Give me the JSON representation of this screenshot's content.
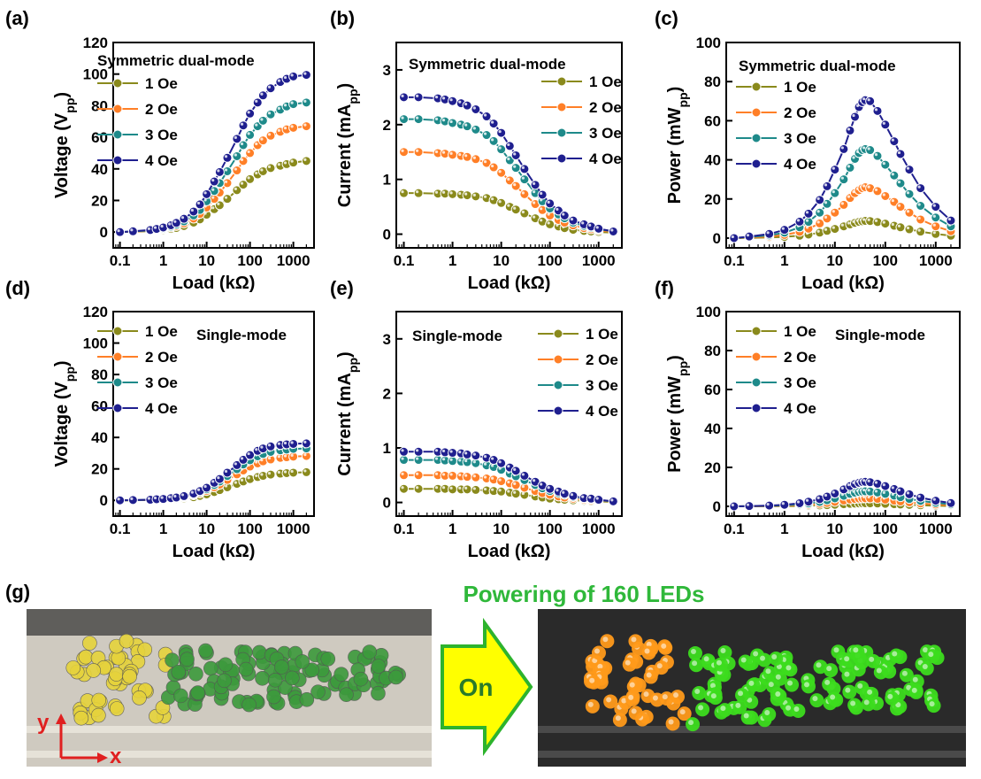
{
  "colors": {
    "1 Oe": "#8a8a1c",
    "2 Oe": "#ff7f27",
    "3 Oe": "#1e8a8a",
    "4 Oe": "#1f1f8f",
    "led_yellow_photo": "#e6d33c",
    "led_green_photo": "#3c9a3c",
    "led_orange_lit": "#ff9a1a",
    "led_green_lit": "#3cdc1e",
    "arrow_fill": "#ffff00",
    "arrow_stroke": "#2db32d"
  },
  "chart_data": [
    {
      "panel": "(a)",
      "type": "line",
      "title": "Symmetric dual-mode",
      "xlabel": "Load (kΩ)",
      "ylabel": "Voltage (V",
      "ylabel_sub": "pp",
      "ylabel_close": ")",
      "xscale": "log",
      "xlim": [
        0.07,
        3000
      ],
      "ylim": [
        -10,
        120
      ],
      "xticks": [
        0.1,
        1,
        10,
        100,
        1000
      ],
      "xtick_labels": [
        "0.1",
        "1",
        "10",
        "100",
        "1000"
      ],
      "yticks": [
        0,
        20,
        40,
        60,
        80,
        100,
        120
      ],
      "ytick_labels": [
        "0",
        "20",
        "40",
        "60",
        "80",
        "100",
        "120"
      ],
      "legend_placement": "upper-left",
      "x": [
        0.1,
        0.2,
        0.5,
        0.7,
        1,
        1.5,
        2,
        3,
        5,
        7,
        10,
        15,
        20,
        30,
        50,
        70,
        100,
        150,
        200,
        300,
        500,
        700,
        1000,
        2000
      ],
      "series": [
        {
          "name": "1 Oe",
          "values": [
            0,
            0.2,
            0.6,
            0.9,
            1.3,
            2,
            2.6,
            3.8,
            6,
            8,
            11,
            14.5,
            17,
            21,
            26.5,
            30,
            33.5,
            36.5,
            38.5,
            40.5,
            42,
            43,
            44,
            45
          ]
        },
        {
          "name": "2 Oe",
          "values": [
            0,
            0.3,
            0.8,
            1.2,
            1.9,
            2.9,
            3.8,
            5.5,
            8.5,
            11.5,
            15.5,
            21,
            25,
            31,
            39,
            45,
            50,
            55,
            58,
            61,
            63.5,
            65,
            66,
            67
          ]
        },
        {
          "name": "3 Oe",
          "values": [
            0,
            0.4,
            1,
            1.5,
            2.3,
            3.5,
            4.7,
            6.8,
            10.5,
            14,
            19.5,
            26,
            31,
            38.5,
            48,
            55,
            61.5,
            67,
            70.5,
            74.5,
            77.5,
            79.5,
            81,
            82
          ]
        },
        {
          "name": "4 Oe",
          "values": [
            0,
            0.5,
            1.3,
            2,
            2.9,
            4.3,
            5.8,
            8.4,
            13,
            17.5,
            24,
            32,
            38,
            47,
            59,
            67.5,
            75,
            82,
            86.5,
            91,
            95,
            97,
            98.5,
            99.5
          ]
        }
      ]
    },
    {
      "panel": "(b)",
      "type": "line",
      "title": "Symmetric dual-mode",
      "xlabel": "Load (kΩ)",
      "ylabel": "Current (mA",
      "ylabel_sub": "pp",
      "ylabel_close": ")",
      "xscale": "log",
      "xlim": [
        0.07,
        3000
      ],
      "ylim": [
        -0.25,
        3.5
      ],
      "xticks": [
        0.1,
        1,
        10,
        100,
        1000
      ],
      "xtick_labels": [
        "0.1",
        "1",
        "10",
        "100",
        "1000"
      ],
      "yticks": [
        0,
        1,
        2,
        3
      ],
      "ytick_labels": [
        "0",
        "1",
        "2",
        "3"
      ],
      "legend_placement": "upper-right",
      "x": [
        0.1,
        0.2,
        0.5,
        0.7,
        1,
        1.5,
        2,
        3,
        5,
        7,
        10,
        15,
        20,
        30,
        50,
        70,
        100,
        150,
        200,
        300,
        500,
        700,
        1000,
        2000
      ],
      "series": [
        {
          "name": "1 Oe",
          "values": [
            0.75,
            0.75,
            0.74,
            0.74,
            0.73,
            0.72,
            0.71,
            0.69,
            0.66,
            0.62,
            0.57,
            0.5,
            0.45,
            0.38,
            0.29,
            0.23,
            0.18,
            0.14,
            0.11,
            0.08,
            0.06,
            0.05,
            0.04,
            0.03
          ]
        },
        {
          "name": "2 Oe",
          "values": [
            1.5,
            1.5,
            1.48,
            1.47,
            1.45,
            1.43,
            1.41,
            1.37,
            1.3,
            1.22,
            1.12,
            0.98,
            0.88,
            0.73,
            0.55,
            0.44,
            0.34,
            0.26,
            0.21,
            0.16,
            0.11,
            0.09,
            0.07,
            0.04
          ]
        },
        {
          "name": "3 Oe",
          "values": [
            2.1,
            2.1,
            2.08,
            2.06,
            2.03,
            2.0,
            1.97,
            1.91,
            1.81,
            1.7,
            1.55,
            1.35,
            1.21,
            1.0,
            0.75,
            0.6,
            0.47,
            0.36,
            0.29,
            0.21,
            0.15,
            0.12,
            0.09,
            0.05
          ]
        },
        {
          "name": "4 Oe",
          "values": [
            2.5,
            2.5,
            2.48,
            2.46,
            2.43,
            2.39,
            2.35,
            2.28,
            2.15,
            2.02,
            1.85,
            1.61,
            1.44,
            1.19,
            0.9,
            0.72,
            0.56,
            0.43,
            0.34,
            0.25,
            0.18,
            0.14,
            0.1,
            0.05
          ]
        }
      ]
    },
    {
      "panel": "(c)",
      "type": "line",
      "title": "Symmetric dual-mode",
      "xlabel": "Load (kΩ)",
      "ylabel": "Power (mW",
      "ylabel_sub": "pp",
      "ylabel_close": ")",
      "xscale": "log",
      "xlim": [
        0.07,
        3000
      ],
      "ylim": [
        -5,
        100
      ],
      "xticks": [
        0.1,
        1,
        10,
        100,
        1000
      ],
      "xtick_labels": [
        "0.1",
        "1",
        "10",
        "100",
        "1000"
      ],
      "yticks": [
        0,
        20,
        40,
        60,
        80,
        100
      ],
      "ytick_labels": [
        "0",
        "20",
        "40",
        "60",
        "80",
        "100"
      ],
      "legend_placement": "upper-left",
      "x": [
        0.1,
        0.2,
        0.5,
        1,
        2,
        3,
        5,
        7,
        10,
        15,
        20,
        25,
        30,
        35,
        40,
        50,
        70,
        100,
        150,
        200,
        300,
        500,
        1000,
        2000
      ],
      "series": [
        {
          "name": "1 Oe",
          "values": [
            0,
            0.1,
            0.3,
            0.6,
            1.2,
            1.8,
            2.8,
            3.7,
            4.7,
            6,
            7,
            7.8,
            8.3,
            8.6,
            8.8,
            8.7,
            8.2,
            7.4,
            6.3,
            5.5,
            4.5,
            3.3,
            2.1,
            1.2
          ]
        },
        {
          "name": "2 Oe",
          "values": [
            0,
            0.3,
            0.8,
            1.6,
            3.2,
            4.8,
            7.5,
            10,
            13,
            17,
            20.5,
            23,
            24.5,
            25.5,
            26,
            25.5,
            24,
            21.5,
            18.5,
            16,
            13,
            9.5,
            6,
            3.5
          ]
        },
        {
          "name": "3 Oe",
          "values": [
            0,
            0.5,
            1.4,
            2.8,
            5.5,
            8.3,
            13,
            17.5,
            23,
            30,
            36,
            40.5,
            43.5,
            45,
            45.5,
            45,
            42,
            37.5,
            32,
            28,
            22.5,
            16.5,
            10.5,
            6
          ]
        },
        {
          "name": "4 Oe",
          "values": [
            0,
            0.8,
            2.1,
            4.2,
            8.4,
            12.5,
            19.5,
            26.5,
            35,
            45.5,
            55,
            62,
            67,
            69.5,
            70.5,
            70,
            65,
            58,
            49.5,
            43,
            35,
            25.5,
            16,
            9
          ]
        }
      ]
    },
    {
      "panel": "(d)",
      "type": "line",
      "title": "Single-mode",
      "xlabel": "Load (kΩ)",
      "ylabel": "Voltage (V",
      "ylabel_sub": "pp",
      "ylabel_close": ")",
      "xscale": "log",
      "xlim": [
        0.07,
        3000
      ],
      "ylim": [
        -10,
        120
      ],
      "xticks": [
        0.1,
        1,
        10,
        100,
        1000
      ],
      "xtick_labels": [
        "0.1",
        "1",
        "10",
        "100",
        "1000"
      ],
      "yticks": [
        0,
        20,
        40,
        60,
        80,
        100,
        120
      ],
      "ytick_labels": [
        "0",
        "20",
        "40",
        "60",
        "80",
        "100",
        "120"
      ],
      "legend_placement": "upper-left",
      "x": [
        0.1,
        0.2,
        0.5,
        0.7,
        1,
        1.5,
        2,
        3,
        5,
        7,
        10,
        15,
        20,
        30,
        50,
        70,
        100,
        150,
        200,
        300,
        500,
        700,
        1000,
        2000
      ],
      "series": [
        {
          "name": "1 Oe",
          "values": [
            0,
            0.1,
            0.2,
            0.3,
            0.5,
            0.7,
            0.9,
            1.3,
            2,
            2.8,
            3.8,
            5.3,
            6.5,
            8.3,
            10.5,
            12,
            13.5,
            14.8,
            15.6,
            16.4,
            17,
            17.3,
            17.6,
            17.9
          ]
        },
        {
          "name": "2 Oe",
          "values": [
            0,
            0.1,
            0.3,
            0.5,
            0.7,
            1,
            1.4,
            2,
            3.2,
            4.4,
            6,
            8.3,
            10,
            13,
            16.5,
            19,
            21.5,
            23.5,
            24.8,
            26,
            27,
            27.4,
            27.8,
            28.2
          ]
        },
        {
          "name": "3 Oe",
          "values": [
            0,
            0.1,
            0.4,
            0.6,
            0.8,
            1.2,
            1.6,
            2.4,
            3.8,
            5.2,
            7,
            9.8,
            12,
            15.5,
            19.8,
            22.8,
            25.5,
            28,
            29.5,
            30.8,
            31.8,
            32.3,
            32.7,
            33
          ]
        },
        {
          "name": "4 Oe",
          "values": [
            0,
            0.2,
            0.4,
            0.7,
            0.9,
            1.4,
            1.8,
            2.7,
            4.3,
            5.9,
            8,
            11.2,
            13.6,
            17.6,
            22.4,
            25.8,
            28.8,
            31.5,
            33,
            34.3,
            35.2,
            35.6,
            35.9,
            36.2
          ]
        }
      ]
    },
    {
      "panel": "(e)",
      "type": "line",
      "title": "Single-mode",
      "xlabel": "Load (kΩ)",
      "ylabel": "Current (mA",
      "ylabel_sub": "pp",
      "ylabel_close": ")",
      "xscale": "log",
      "xlim": [
        0.07,
        3000
      ],
      "ylim": [
        -0.25,
        3.5
      ],
      "xticks": [
        0.1,
        1,
        10,
        100,
        1000
      ],
      "xtick_labels": [
        "0.1",
        "1",
        "10",
        "100",
        "1000"
      ],
      "yticks": [
        0,
        1,
        2,
        3
      ],
      "ytick_labels": [
        "0",
        "1",
        "2",
        "3"
      ],
      "legend_placement": "upper-right",
      "x": [
        0.1,
        0.2,
        0.5,
        0.7,
        1,
        1.5,
        2,
        3,
        5,
        7,
        10,
        15,
        20,
        30,
        50,
        70,
        100,
        150,
        200,
        300,
        500,
        700,
        1000,
        2000
      ],
      "series": [
        {
          "name": "1 Oe",
          "values": [
            0.25,
            0.25,
            0.25,
            0.25,
            0.24,
            0.24,
            0.24,
            0.23,
            0.22,
            0.21,
            0.2,
            0.18,
            0.16,
            0.14,
            0.11,
            0.09,
            0.07,
            0.06,
            0.05,
            0.04,
            0.03,
            0.02,
            0.02,
            0.01
          ]
        },
        {
          "name": "2 Oe",
          "values": [
            0.5,
            0.5,
            0.5,
            0.49,
            0.49,
            0.48,
            0.47,
            0.46,
            0.44,
            0.42,
            0.39,
            0.35,
            0.32,
            0.27,
            0.21,
            0.17,
            0.14,
            0.11,
            0.09,
            0.07,
            0.05,
            0.04,
            0.03,
            0.02
          ]
        },
        {
          "name": "3 Oe",
          "values": [
            0.78,
            0.78,
            0.78,
            0.77,
            0.76,
            0.75,
            0.74,
            0.72,
            0.68,
            0.65,
            0.6,
            0.53,
            0.48,
            0.41,
            0.32,
            0.26,
            0.21,
            0.17,
            0.14,
            0.1,
            0.07,
            0.06,
            0.04,
            0.02
          ]
        },
        {
          "name": "4 Oe",
          "values": [
            0.93,
            0.93,
            0.93,
            0.92,
            0.91,
            0.9,
            0.88,
            0.86,
            0.82,
            0.78,
            0.72,
            0.64,
            0.58,
            0.49,
            0.38,
            0.31,
            0.25,
            0.2,
            0.16,
            0.12,
            0.08,
            0.07,
            0.05,
            0.02
          ]
        }
      ]
    },
    {
      "panel": "(f)",
      "type": "line",
      "title": "Single-mode",
      "xlabel": "Load (kΩ)",
      "ylabel": "Power (mW",
      "ylabel_sub": "pp",
      "ylabel_close": ")",
      "xscale": "log",
      "xlim": [
        0.07,
        3000
      ],
      "ylim": [
        -5,
        100
      ],
      "xticks": [
        0.1,
        1,
        10,
        100,
        1000
      ],
      "xtick_labels": [
        "0.1",
        "1",
        "10",
        "100",
        "1000"
      ],
      "yticks": [
        0,
        20,
        40,
        60,
        80,
        100
      ],
      "ytick_labels": [
        "0",
        "20",
        "40",
        "60",
        "80",
        "100"
      ],
      "legend_placement": "upper-left",
      "x": [
        0.1,
        0.2,
        0.5,
        1,
        2,
        3,
        5,
        7,
        10,
        15,
        20,
        25,
        30,
        35,
        40,
        50,
        70,
        100,
        150,
        200,
        300,
        500,
        1000,
        2000
      ],
      "series": [
        {
          "name": "1 Oe",
          "values": [
            0,
            0,
            0.05,
            0.1,
            0.2,
            0.3,
            0.5,
            0.6,
            0.8,
            1.1,
            1.3,
            1.4,
            1.5,
            1.55,
            1.6,
            1.55,
            1.45,
            1.3,
            1.1,
            0.95,
            0.75,
            0.55,
            0.35,
            0.2
          ]
        },
        {
          "name": "2 Oe",
          "values": [
            0,
            0.05,
            0.15,
            0.3,
            0.55,
            0.85,
            1.3,
            1.75,
            2.3,
            3,
            3.5,
            3.8,
            4,
            4.1,
            4.15,
            4.1,
            3.85,
            3.45,
            2.95,
            2.55,
            2.05,
            1.5,
            0.95,
            0.55
          ]
        },
        {
          "name": "3 Oe",
          "values": [
            0,
            0.1,
            0.25,
            0.5,
            1,
            1.5,
            2.3,
            3.1,
            4.1,
            5.4,
            6.4,
            7,
            7.4,
            7.6,
            7.7,
            7.6,
            7.1,
            6.4,
            5.5,
            4.7,
            3.8,
            2.8,
            1.8,
            1
          ]
        },
        {
          "name": "4 Oe",
          "values": [
            0,
            0.15,
            0.4,
            0.8,
            1.6,
            2.4,
            3.7,
            5,
            6.6,
            8.7,
            10.4,
            11.5,
            12.1,
            12.5,
            12.6,
            12.4,
            11.6,
            10.4,
            8.9,
            7.7,
            6.2,
            4.5,
            2.9,
            1.7
          ]
        }
      ]
    }
  ],
  "panel_g": {
    "label": "(g)",
    "title": "Powering of 160 LEDs",
    "arrow_label": "On",
    "axis_y": "y",
    "axis_x": "x"
  }
}
